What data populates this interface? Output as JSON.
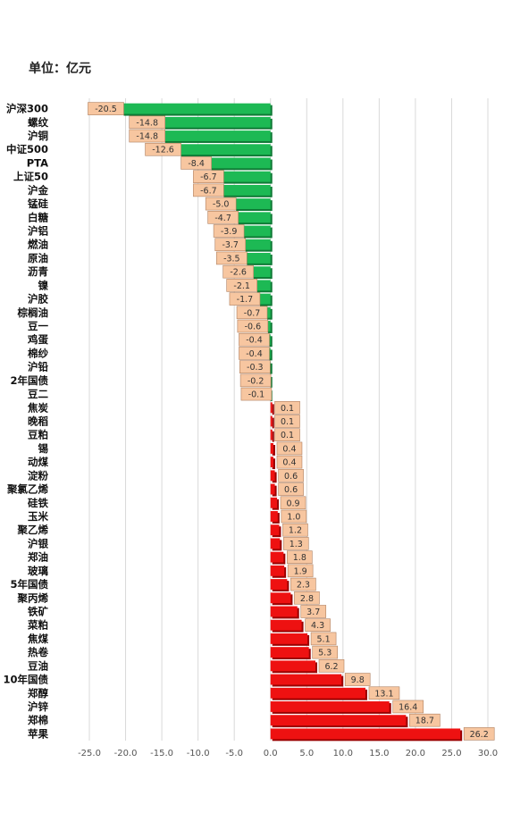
{
  "unit_label": "单位：亿元",
  "chart_data": {
    "type": "bar",
    "orientation": "horizontal",
    "title": "",
    "xlabel": "",
    "ylabel": "",
    "xlim": [
      -25,
      30
    ],
    "x_ticks": [
      -25.0,
      -20.0,
      -15.0,
      -10.0,
      -5.0,
      0.0,
      5.0,
      10.0,
      15.0,
      20.0,
      25.0,
      30.0
    ],
    "x_tick_labels": [
      "-25.0",
      "-20.0",
      "-15.0",
      "-10.0",
      "-5.0",
      "0.0",
      "5.0",
      "10.0",
      "15.0",
      "20.0",
      "25.0",
      "30.0"
    ],
    "grid": "vertical",
    "colors": {
      "negative": "#1db954",
      "positive": "#ee1111",
      "label_box": "#f7c6a0"
    },
    "categories": [
      "沪深300",
      "螺纹",
      "沪铜",
      "中证500",
      "PTA",
      "上证50",
      "沪金",
      "锰硅",
      "白糖",
      "沪铝",
      "燃油",
      "原油",
      "沥青",
      "镍",
      "沪胶",
      "棕榈油",
      "豆一",
      "鸡蛋",
      "棉纱",
      "沪铅",
      "2年国债",
      "豆二",
      "焦炭",
      "晚稻",
      "豆粕",
      "锡",
      "动煤",
      "淀粉",
      "聚氯乙烯",
      "硅铁",
      "玉米",
      "聚乙烯",
      "沪银",
      "郑油",
      "玻璃",
      "5年国债",
      "聚丙烯",
      "铁矿",
      "菜粕",
      "焦煤",
      "热卷",
      "豆油",
      "10年国债",
      "郑醇",
      "沪锌",
      "郑棉",
      "苹果"
    ],
    "values": [
      -20.5,
      -14.8,
      -14.8,
      -12.6,
      -8.4,
      -6.7,
      -6.7,
      -5.0,
      -4.7,
      -3.9,
      -3.7,
      -3.5,
      -2.6,
      -2.1,
      -1.7,
      -0.7,
      -0.6,
      -0.4,
      -0.4,
      -0.3,
      -0.2,
      -0.1,
      0.1,
      0.1,
      0.1,
      0.4,
      0.4,
      0.6,
      0.6,
      0.9,
      1.0,
      1.2,
      1.3,
      1.8,
      1.9,
      2.3,
      2.8,
      3.7,
      4.3,
      5.1,
      5.3,
      6.2,
      9.8,
      13.1,
      16.4,
      18.7,
      26.2
    ]
  }
}
